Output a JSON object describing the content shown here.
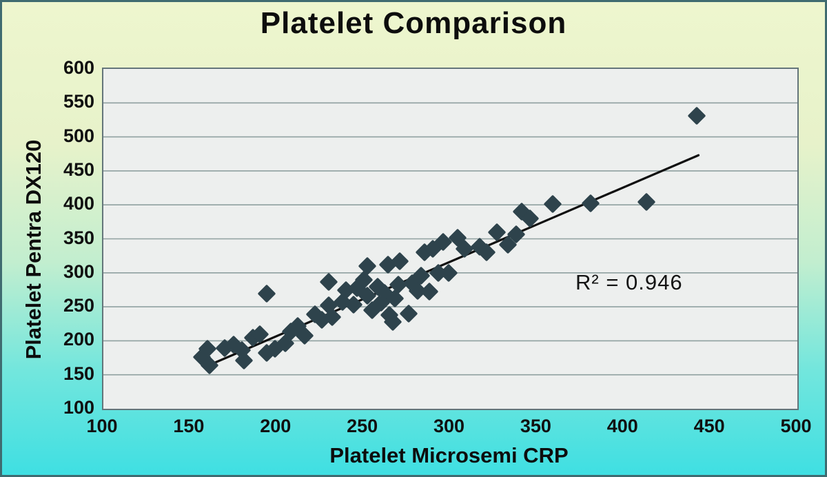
{
  "chart_data": {
    "type": "scatter",
    "title": "Platelet Comparison",
    "xlabel": "Platelet Microsemi CRP",
    "ylabel": "Platelet Pentra DX120",
    "annotation": "R² = 0.946",
    "xlim": [
      100,
      500
    ],
    "ylim": [
      100,
      600
    ],
    "xticks": [
      100,
      150,
      200,
      250,
      300,
      350,
      400,
      450,
      500
    ],
    "yticks": [
      100,
      150,
      200,
      250,
      300,
      350,
      400,
      450,
      500,
      550,
      600
    ],
    "grid": "horizontal-only",
    "legend": "none",
    "marker": "diamond",
    "points": [
      [
        157,
        176
      ],
      [
        160,
        188
      ],
      [
        161,
        164
      ],
      [
        170,
        189
      ],
      [
        175,
        194
      ],
      [
        180,
        186
      ],
      [
        181,
        171
      ],
      [
        186,
        204
      ],
      [
        190,
        210
      ],
      [
        194,
        182
      ],
      [
        199,
        188
      ],
      [
        194,
        269
      ],
      [
        205,
        196
      ],
      [
        208,
        214
      ],
      [
        212,
        222
      ],
      [
        216,
        208
      ],
      [
        222,
        239
      ],
      [
        226,
        231
      ],
      [
        230,
        252
      ],
      [
        232,
        235
      ],
      [
        230,
        287
      ],
      [
        238,
        257
      ],
      [
        240,
        274
      ],
      [
        244,
        253
      ],
      [
        246,
        277
      ],
      [
        250,
        290
      ],
      [
        252,
        310
      ],
      [
        252,
        266
      ],
      [
        255,
        245
      ],
      [
        258,
        280
      ],
      [
        260,
        256
      ],
      [
        262,
        270
      ],
      [
        264,
        312
      ],
      [
        265,
        238
      ],
      [
        267,
        228
      ],
      [
        268,
        262
      ],
      [
        270,
        283
      ],
      [
        271,
        317
      ],
      [
        276,
        240
      ],
      [
        278,
        285
      ],
      [
        281,
        273
      ],
      [
        283,
        296
      ],
      [
        285,
        330
      ],
      [
        288,
        272
      ],
      [
        290,
        335
      ],
      [
        293,
        300
      ],
      [
        296,
        345
      ],
      [
        299,
        300
      ],
      [
        304,
        352
      ],
      [
        308,
        335
      ],
      [
        317,
        338
      ],
      [
        321,
        330
      ],
      [
        327,
        360
      ],
      [
        333,
        341
      ],
      [
        338,
        357
      ],
      [
        341,
        390
      ],
      [
        346,
        380
      ],
      [
        359,
        401
      ],
      [
        381,
        402
      ],
      [
        413,
        404
      ],
      [
        442,
        531
      ]
    ],
    "trendline": {
      "x1": 158,
      "y1": 161,
      "x2": 443,
      "y2": 473
    },
    "colors": {
      "marker": "#2e434c",
      "trendline": "#0f0f0f",
      "plot_background": "#edefee",
      "gridline": "#8fa0a0",
      "plot_border": "#64757a",
      "background_top": "#eef6ce",
      "background_bottom": "#3fdfe2",
      "text": "#0d0d0d"
    }
  }
}
